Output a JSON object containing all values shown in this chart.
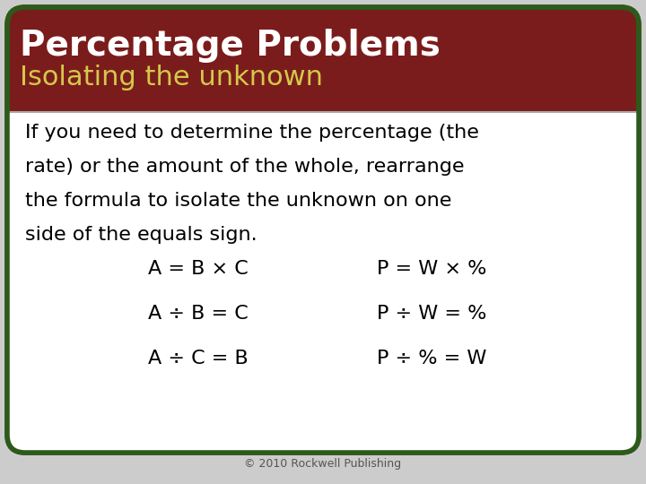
{
  "title_line1": "Percentage Problems",
  "title_line2": "Isolating the unknown",
  "title_bg_color": "#7B1C1C",
  "title_line1_color": "#FFFFFF",
  "title_line2_color": "#D4C84A",
  "body_bg_color": "#FFFFFF",
  "border_color": "#2D5A1B",
  "separator_color": "#AAAAAA",
  "body_text_line1": "If you need to determine the percentage (the",
  "body_text_line2": "rate) or the amount of the whole, rearrange",
  "body_text_line3": "the formula to isolate the unknown on one",
  "body_text_line4": "side of the equals sign.",
  "body_text_color": "#000000",
  "formulas_left": [
    "A = B × C",
    "A ÷ B = C",
    "A ÷ C = B"
  ],
  "formulas_right": [
    "P = W × %",
    "P ÷ W = %",
    "P ÷ % = W"
  ],
  "formula_color": "#000000",
  "footer_text": "© 2010 Rockwell Publishing",
  "footer_color": "#555555",
  "fig_bg_color": "#CCCCCC"
}
